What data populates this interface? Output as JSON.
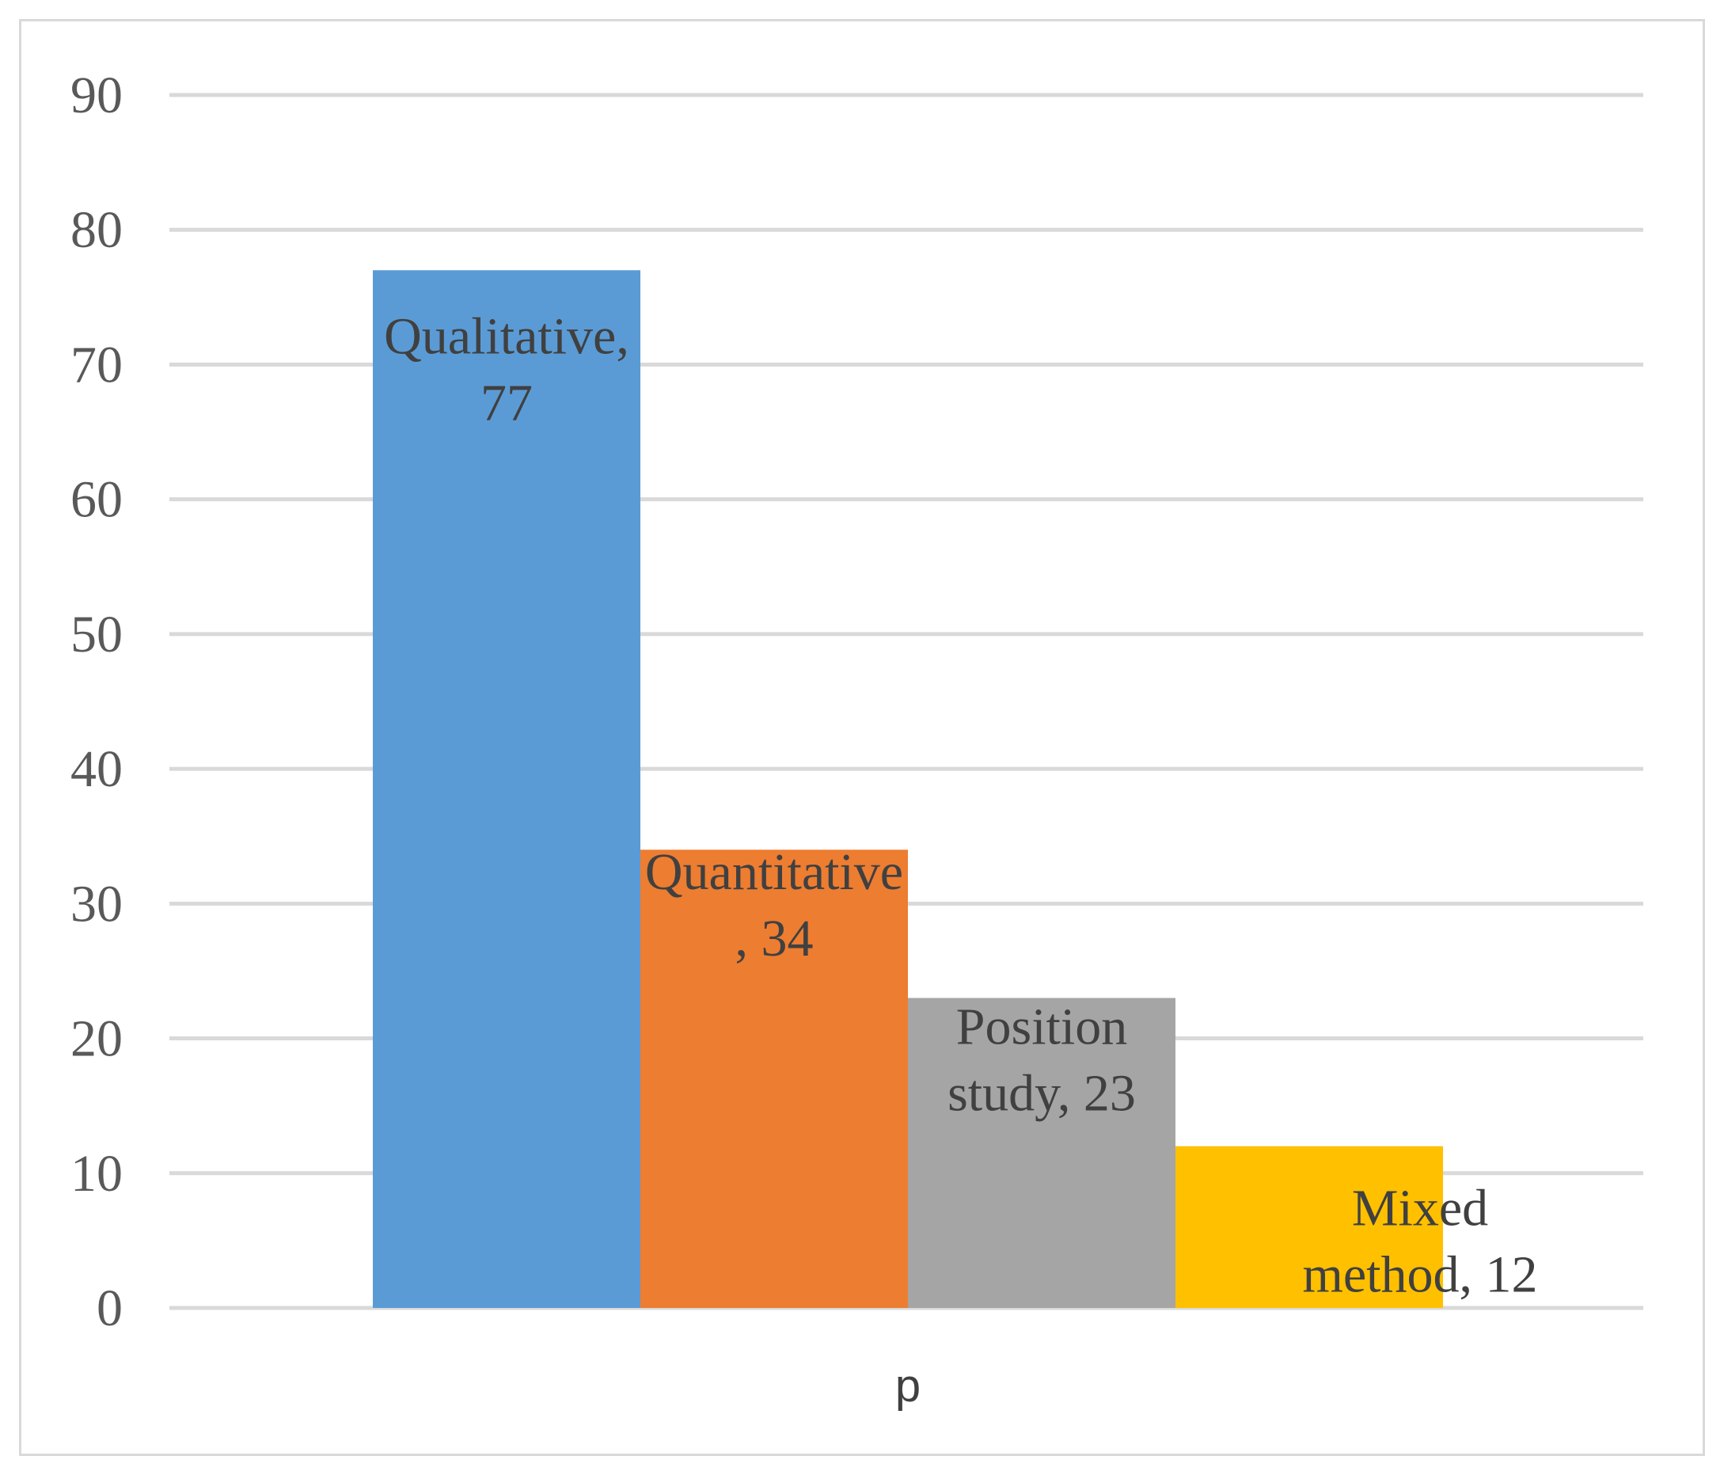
{
  "chart_data": {
    "type": "bar",
    "title": "",
    "xlabel": "",
    "ylabel": "",
    "categories": [
      "p"
    ],
    "ylim": [
      0,
      90
    ],
    "yticks": [
      0,
      10,
      20,
      30,
      40,
      50,
      60,
      70,
      80,
      90
    ],
    "grid": true,
    "legend": "none",
    "series": [
      {
        "name": "Qualitative",
        "values": [
          77
        ],
        "color": "#5b9bd5",
        "label_lines": [
          "Qualitative,",
          "77"
        ]
      },
      {
        "name": "Quantitative",
        "values": [
          34
        ],
        "color": "#ed7d31",
        "label_lines": [
          "Quantitative",
          ", 34"
        ]
      },
      {
        "name": "Position study",
        "values": [
          23
        ],
        "color": "#a5a5a5",
        "label_lines": [
          "Position",
          "study, 23"
        ]
      },
      {
        "name": "Mixed method",
        "values": [
          12
        ],
        "color": "#ffc000",
        "label_lines": [
          "Mixed",
          "method, 12"
        ]
      }
    ]
  }
}
